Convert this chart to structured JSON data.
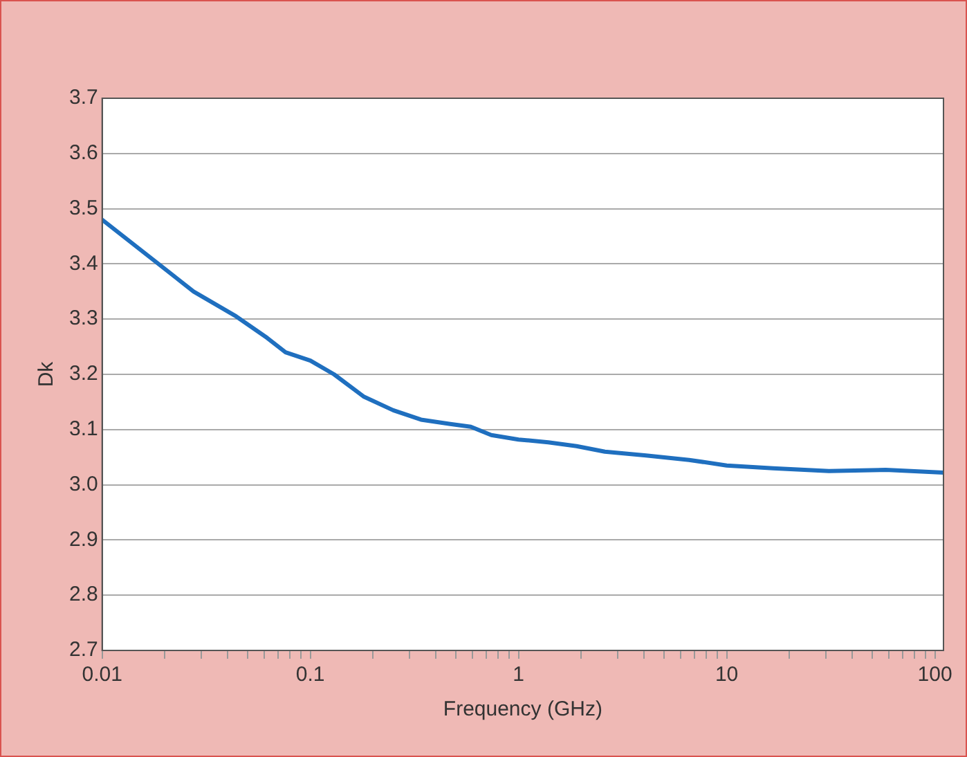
{
  "chart_data": {
    "type": "line",
    "xlabel": "Frequency (GHz)",
    "ylabel": "Dk",
    "log": "x",
    "grid": "y",
    "marker": "none",
    "line_style": "solid",
    "x": [
      0.01,
      0.0275,
      0.044,
      0.062,
      0.076,
      0.1,
      0.13,
      0.18,
      0.25,
      0.34,
      0.47,
      0.59,
      0.74,
      1,
      1.39,
      1.9,
      2.6,
      4.1,
      6.6,
      10,
      16.7,
      31,
      58,
      110
    ],
    "series": [
      {
        "color": "#1f6fbf",
        "values": [
          3.48,
          3.35,
          3.305,
          3.266,
          3.24,
          3.225,
          3.2,
          3.16,
          3.135,
          3.118,
          3.11,
          3.105,
          3.09,
          3.082,
          3.077,
          3.07,
          3.06,
          3.053,
          3.045,
          3.035,
          3.03,
          3.025,
          3.027,
          3.022
        ]
      }
    ],
    "xlim": [
      0.01,
      110
    ],
    "xticks": [
      0.01,
      {
        "value": 0.02,
        "label": null
      },
      {
        "value": 0.03,
        "label": null
      },
      {
        "value": 0.04,
        "label": null
      },
      {
        "value": 0.05,
        "label": null
      },
      {
        "value": 0.06,
        "label": null
      },
      {
        "value": 0.07,
        "label": null
      },
      {
        "value": 0.08,
        "label": null
      },
      {
        "value": 0.09,
        "label": null
      },
      0.1,
      {
        "value": 0.2,
        "label": null
      },
      {
        "value": 0.3,
        "label": null
      },
      {
        "value": 0.4,
        "label": null
      },
      {
        "value": 0.5,
        "label": null
      },
      {
        "value": 0.6,
        "label": null
      },
      {
        "value": 0.7,
        "label": null
      },
      {
        "value": 0.8,
        "label": null
      },
      {
        "value": 0.9,
        "label": null
      },
      1,
      {
        "value": 2,
        "label": null
      },
      {
        "value": 3,
        "label": null
      },
      {
        "value": 4,
        "label": null
      },
      {
        "value": 5,
        "label": null
      },
      {
        "value": 6,
        "label": null
      },
      {
        "value": 7,
        "label": null
      },
      {
        "value": 8,
        "label": null
      },
      {
        "value": 9,
        "label": null
      },
      10,
      {
        "value": 20,
        "label": null
      },
      {
        "value": 30,
        "label": null
      },
      {
        "value": 40,
        "label": null
      },
      {
        "value": 50,
        "label": null
      },
      {
        "value": 60,
        "label": null
      },
      {
        "value": 70,
        "label": null
      },
      {
        "value": 80,
        "label": null
      },
      {
        "value": 90,
        "label": null
      },
      100
    ],
    "ylim": [
      2.7,
      3.7
    ],
    "yticks": [
      2.7,
      2.8,
      2.9,
      {
        "value": 3,
        "label": "3.0"
      },
      3.1,
      3.2,
      3.3,
      3.4,
      3.5,
      3.6,
      3.7
    ]
  }
}
